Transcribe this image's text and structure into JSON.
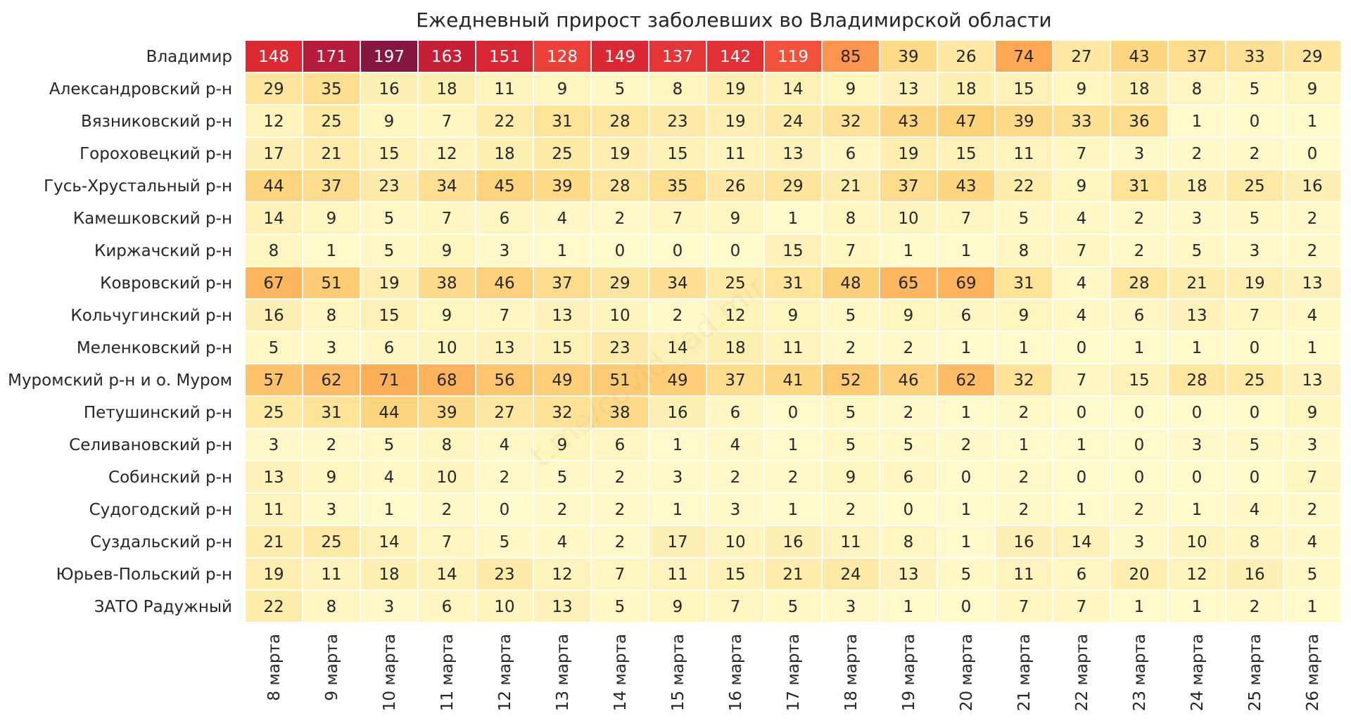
{
  "chart_data": {
    "type": "heatmap",
    "title": "Ежедневный прирост заболевших во Владимирской области",
    "watermark": "t.me/covid_lad.mir",
    "columns": [
      "8 марта",
      "9 марта",
      "10 марта",
      "11 марта",
      "12 марта",
      "13 марта",
      "14 марта",
      "15 марта",
      "16 марта",
      "17 марта",
      "18 марта",
      "19 марта",
      "20 марта",
      "21 марта",
      "22 марта",
      "23 марта",
      "24 марта",
      "25 марта",
      "26 марта"
    ],
    "rows": [
      "Владимир",
      "Александровский р-н",
      "Вязниковский р-н",
      "Гороховецкий р-н",
      "Гусь-Хрустальный р-н",
      "Камешковский р-н",
      "Киржачский р-н",
      "Ковровский р-н",
      "Кольчугинский р-н",
      "Меленковский р-н",
      "Муромский р-н и о. Муром",
      "Петушинский р-н",
      "Селивановский р-н",
      "Собинский р-н",
      "Судогодский р-н",
      "Суздальский р-н",
      "Юрьев-Польский р-н",
      "ЗАТО Радужный"
    ],
    "values": [
      [
        148,
        171,
        197,
        163,
        151,
        128,
        149,
        137,
        142,
        119,
        85,
        39,
        26,
        74,
        27,
        43,
        37,
        33,
        29
      ],
      [
        29,
        35,
        16,
        18,
        11,
        9,
        5,
        8,
        19,
        14,
        9,
        13,
        18,
        15,
        9,
        18,
        8,
        5,
        9
      ],
      [
        12,
        25,
        9,
        7,
        22,
        31,
        28,
        23,
        19,
        24,
        32,
        43,
        47,
        39,
        33,
        36,
        1,
        0,
        1
      ],
      [
        17,
        21,
        15,
        12,
        18,
        25,
        19,
        15,
        11,
        13,
        6,
        19,
        15,
        11,
        7,
        3,
        2,
        2,
        0
      ],
      [
        44,
        37,
        23,
        34,
        45,
        39,
        28,
        35,
        26,
        29,
        21,
        37,
        43,
        22,
        9,
        31,
        18,
        25,
        16
      ],
      [
        14,
        9,
        5,
        7,
        6,
        4,
        2,
        7,
        9,
        1,
        8,
        10,
        7,
        5,
        4,
        2,
        3,
        5,
        2
      ],
      [
        8,
        1,
        5,
        9,
        3,
        1,
        0,
        0,
        0,
        15,
        7,
        1,
        1,
        8,
        7,
        2,
        5,
        3,
        2
      ],
      [
        67,
        51,
        19,
        38,
        46,
        37,
        29,
        34,
        25,
        31,
        48,
        65,
        69,
        31,
        4,
        28,
        21,
        19,
        13
      ],
      [
        16,
        8,
        15,
        9,
        7,
        13,
        10,
        2,
        12,
        9,
        5,
        9,
        6,
        9,
        4,
        6,
        13,
        7,
        4
      ],
      [
        5,
        3,
        6,
        10,
        13,
        15,
        23,
        14,
        18,
        11,
        2,
        2,
        1,
        1,
        0,
        1,
        1,
        0,
        1
      ],
      [
        57,
        62,
        71,
        68,
        56,
        49,
        51,
        49,
        37,
        41,
        52,
        46,
        62,
        32,
        7,
        15,
        28,
        25,
        13
      ],
      [
        25,
        31,
        44,
        39,
        27,
        32,
        38,
        16,
        6,
        0,
        5,
        2,
        1,
        2,
        0,
        0,
        0,
        0,
        9
      ],
      [
        3,
        2,
        5,
        8,
        4,
        9,
        6,
        1,
        4,
        1,
        5,
        5,
        2,
        1,
        1,
        0,
        3,
        5,
        3
      ],
      [
        13,
        9,
        4,
        10,
        2,
        5,
        2,
        3,
        2,
        2,
        9,
        6,
        0,
        2,
        0,
        0,
        0,
        0,
        7
      ],
      [
        11,
        3,
        1,
        2,
        0,
        2,
        2,
        1,
        3,
        1,
        2,
        0,
        1,
        2,
        1,
        2,
        1,
        4,
        2
      ],
      [
        21,
        25,
        14,
        7,
        5,
        4,
        2,
        17,
        10,
        16,
        11,
        8,
        1,
        16,
        14,
        3,
        10,
        8,
        4
      ],
      [
        19,
        11,
        18,
        14,
        23,
        12,
        7,
        11,
        15,
        21,
        24,
        13,
        5,
        11,
        6,
        20,
        12,
        16,
        5
      ],
      [
        22,
        8,
        3,
        6,
        10,
        13,
        5,
        9,
        7,
        5,
        3,
        1,
        0,
        7,
        7,
        1,
        1,
        2,
        1
      ]
    ],
    "value_range": [
      0,
      197
    ],
    "colormap": "YlOrRd",
    "colors": {
      "low": "#fffacc",
      "mid": "#fdaf58",
      "high_mid": "#e8383a",
      "high": "#861743",
      "cell_border": "#ffffff",
      "text_dark": "#262626",
      "text_light": "#ffffff"
    },
    "colorbar": false,
    "grid": false
  }
}
